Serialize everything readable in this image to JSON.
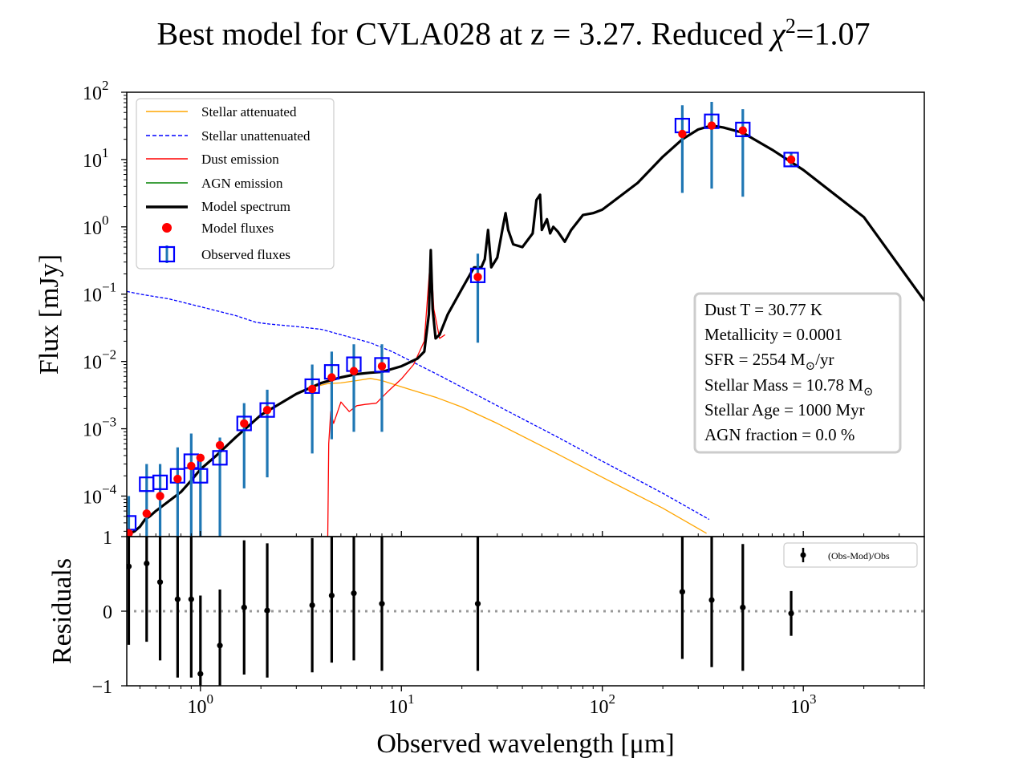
{
  "chart_data": {
    "type": "line",
    "title_prefix": "Best model for CVLA028 at z = 3.27. Reduced ",
    "title_chi": "χ",
    "title_sup": "2",
    "title_suffix": "=1.07",
    "xlabel": "Observed wavelength [μm]",
    "ylabel_top": "Flux [mJy]",
    "ylabel_bottom": "Residuals",
    "xscale": "log",
    "xlim": [
      0.43,
      4000
    ],
    "ylim_top": [
      2.5e-05,
      100
    ],
    "ylim_bottom": [
      -1,
      1
    ],
    "x_ticks": [
      {
        "value": 1,
        "base": "10",
        "exp": "0"
      },
      {
        "value": 10,
        "base": "10",
        "exp": "1"
      },
      {
        "value": 100,
        "base": "10",
        "exp": "2"
      },
      {
        "value": 1000,
        "base": "10",
        "exp": "3"
      }
    ],
    "y_ticks_top": [
      {
        "value": 100,
        "base": "10",
        "exp": "2"
      },
      {
        "value": 10,
        "base": "10",
        "exp": "1"
      },
      {
        "value": 1,
        "base": "10",
        "exp": "0"
      },
      {
        "value": 0.1,
        "base": "10",
        "exp": "−1"
      },
      {
        "value": 0.01,
        "base": "10",
        "exp": "−2"
      },
      {
        "value": 0.001,
        "base": "10",
        "exp": "−3"
      },
      {
        "value": 0.0001,
        "base": "10",
        "exp": "−4"
      }
    ],
    "y_ticks_bottom": [
      {
        "value": 1,
        "label": "1"
      },
      {
        "value": 0,
        "label": "0"
      },
      {
        "value": -1,
        "label": "−1"
      }
    ],
    "legend": [
      {
        "label": "Stellar attenuated",
        "color": "#ffa500",
        "style": "solid"
      },
      {
        "label": "Stellar unattenuated",
        "color": "#0000ff",
        "style": "dashed"
      },
      {
        "label": "Dust emission",
        "color": "#ff0000",
        "style": "solid"
      },
      {
        "label": "AGN emission",
        "color": "#008000",
        "style": "solid"
      },
      {
        "label": "Model spectrum",
        "color": "#000000",
        "style": "thick"
      },
      {
        "label": "Model fluxes",
        "color": "#ff0000",
        "style": "dot"
      },
      {
        "label": "Observed fluxes",
        "color": "#0000ff",
        "style": "square"
      }
    ],
    "residual_legend": "(Obs-Mod)/Obs",
    "info_box": {
      "dust_t": "Dust T = 30.77 K",
      "metallicity": "Metallicity = 0.0001",
      "sfr_prefix": "SFR = 2554 M",
      "sfr_suffix": "/yr",
      "mass_prefix": "Stellar Mass = 10.78 M",
      "age": "Stellar Age = 1000 Myr",
      "agn": "AGN fraction = 0.0 %"
    },
    "series": [
      {
        "name": "Stellar unattenuated",
        "color": "#0000ff",
        "x": [
          0.43,
          0.5,
          0.7,
          1.0,
          1.5,
          1.9,
          2.2,
          3.0,
          4.0,
          5.0,
          7.0,
          9.0,
          15,
          30,
          60,
          100,
          200,
          340
        ],
        "y": [
          0.11,
          0.1,
          0.085,
          0.065,
          0.048,
          0.038,
          0.036,
          0.033,
          0.03,
          0.025,
          0.019,
          0.014,
          0.0065,
          0.0022,
          0.00075,
          0.00033,
          0.00011,
          4.5e-05
        ]
      },
      {
        "name": "Stellar attenuated",
        "color": "#ffa500",
        "x": [
          3.7,
          4.3,
          5.0,
          6.0,
          7.0,
          8.0,
          10,
          15,
          20,
          30,
          60,
          100,
          200,
          330
        ],
        "y": [
          0.0042,
          0.0047,
          0.0048,
          0.0052,
          0.0056,
          0.0052,
          0.0042,
          0.0029,
          0.0021,
          0.0012,
          0.00042,
          0.00019,
          6.6e-05,
          2.8e-05
        ]
      },
      {
        "name": "Dust emission",
        "color": "#ff0000",
        "x": [
          4.3,
          4.35,
          4.45,
          4.6,
          5.0,
          5.5,
          6.0,
          6.6,
          7.5,
          8.5,
          10,
          11.5,
          13,
          14.0,
          14.5,
          15.5,
          16.5
        ],
        "y": [
          2.5e-05,
          0.0006,
          0.0018,
          0.0012,
          0.0025,
          0.0018,
          0.0022,
          0.0023,
          0.0024,
          0.0035,
          0.0055,
          0.009,
          0.02,
          0.4,
          0.06,
          0.022,
          0.025
        ]
      },
      {
        "name": "Model spectrum",
        "color": "#000000",
        "x": [
          0.43,
          0.47,
          0.5,
          0.53,
          0.56,
          0.6,
          0.7,
          0.8,
          0.9,
          1.0,
          1.2,
          1.5,
          2.0,
          3.0,
          4.0,
          5.0,
          6.0,
          7.0,
          8.0,
          10,
          12,
          13.0,
          13.7,
          14.0,
          14.3,
          14.8,
          15.5,
          17,
          20,
          23,
          25,
          26,
          27,
          28,
          30,
          32,
          33,
          34,
          36,
          40,
          45,
          47,
          49,
          50,
          53,
          55,
          57,
          60,
          65,
          70,
          80,
          90,
          100,
          150,
          200,
          250,
          300,
          350,
          400,
          500,
          700,
          1000,
          2000,
          4000
        ],
        "y": [
          2.65e-05,
          3e-05,
          3.5e-05,
          4.5e-05,
          5e-05,
          6e-05,
          8.5e-05,
          0.000115,
          0.00017,
          0.00025,
          0.0004,
          0.00075,
          0.0016,
          0.0033,
          0.0048,
          0.0058,
          0.0065,
          0.0068,
          0.007,
          0.0085,
          0.011,
          0.014,
          0.05,
          0.45,
          0.06,
          0.022,
          0.025,
          0.05,
          0.12,
          0.25,
          0.25,
          0.33,
          0.9,
          0.25,
          0.35,
          1.0,
          1.6,
          0.9,
          0.55,
          0.5,
          0.8,
          2.5,
          3.0,
          0.9,
          1.3,
          0.8,
          1.0,
          0.85,
          0.6,
          0.9,
          1.5,
          1.6,
          1.8,
          4.5,
          11,
          20,
          28,
          32,
          30,
          25,
          14,
          7,
          1.4,
          0.08
        ]
      },
      {
        "name": "Model fluxes",
        "color": "#ff0000",
        "x": [
          0.44,
          0.54,
          0.63,
          0.77,
          0.9,
          1.0,
          1.25,
          1.65,
          2.15,
          3.6,
          4.5,
          5.8,
          8.0,
          24,
          250,
          350,
          500,
          870
        ],
        "y": [
          2.8e-05,
          5.5e-05,
          0.0001,
          0.00018,
          0.00028,
          0.00037,
          0.00057,
          0.0012,
          0.0019,
          0.0039,
          0.0058,
          0.0072,
          0.0085,
          0.18,
          24,
          32,
          27,
          10
        ]
      },
      {
        "name": "Observed fluxes",
        "color": "#0000ff",
        "x": [
          0.44,
          0.54,
          0.63,
          0.77,
          0.9,
          1.0,
          1.25,
          1.65,
          2.15,
          3.6,
          4.5,
          5.8,
          8.0,
          24,
          250,
          350,
          500,
          870
        ],
        "y": [
          4e-05,
          0.00015,
          0.00016,
          0.0002,
          0.00033,
          0.0002,
          0.00037,
          0.0012,
          0.0019,
          0.0043,
          0.007,
          0.0091,
          0.0089,
          0.19,
          32,
          37,
          28,
          10
        ],
        "err_lo": [
          2.5e-05,
          2.5e-05,
          2.5e-05,
          2.5e-05,
          2.5e-05,
          2.5e-05,
          2.5e-05,
          0.00013,
          0.00019,
          0.00043,
          0.0007,
          0.0009,
          0.0009,
          0.019,
          3.2,
          3.7,
          2.8,
          8
        ],
        "err_hi": [
          0.0001,
          0.0003,
          0.0003,
          0.00053,
          0.00085,
          0.0004,
          0.00074,
          0.0024,
          0.0038,
          0.009,
          0.014,
          0.018,
          0.018,
          0.4,
          64,
          72,
          56,
          13
        ]
      },
      {
        "name": "(Obs-Mod)/Obs",
        "color": "#000000",
        "x": [
          0.44,
          0.54,
          0.63,
          0.77,
          0.9,
          1.0,
          1.25,
          1.65,
          2.15,
          3.6,
          4.5,
          5.8,
          8.0,
          24,
          250,
          350,
          500,
          870
        ],
        "y": [
          0.6,
          0.64,
          0.39,
          0.16,
          0.16,
          -0.84,
          -0.46,
          0.05,
          0.01,
          0.08,
          0.21,
          0.24,
          0.1,
          0.1,
          0.26,
          0.15,
          0.05,
          -0.03
        ],
        "err": [
          1.05,
          1.05,
          1.05,
          1.05,
          1.05,
          1.05,
          0.75,
          0.9,
          0.9,
          0.9,
          0.9,
          0.9,
          0.9,
          0.9,
          0.9,
          0.9,
          0.85,
          0.3
        ]
      }
    ]
  }
}
